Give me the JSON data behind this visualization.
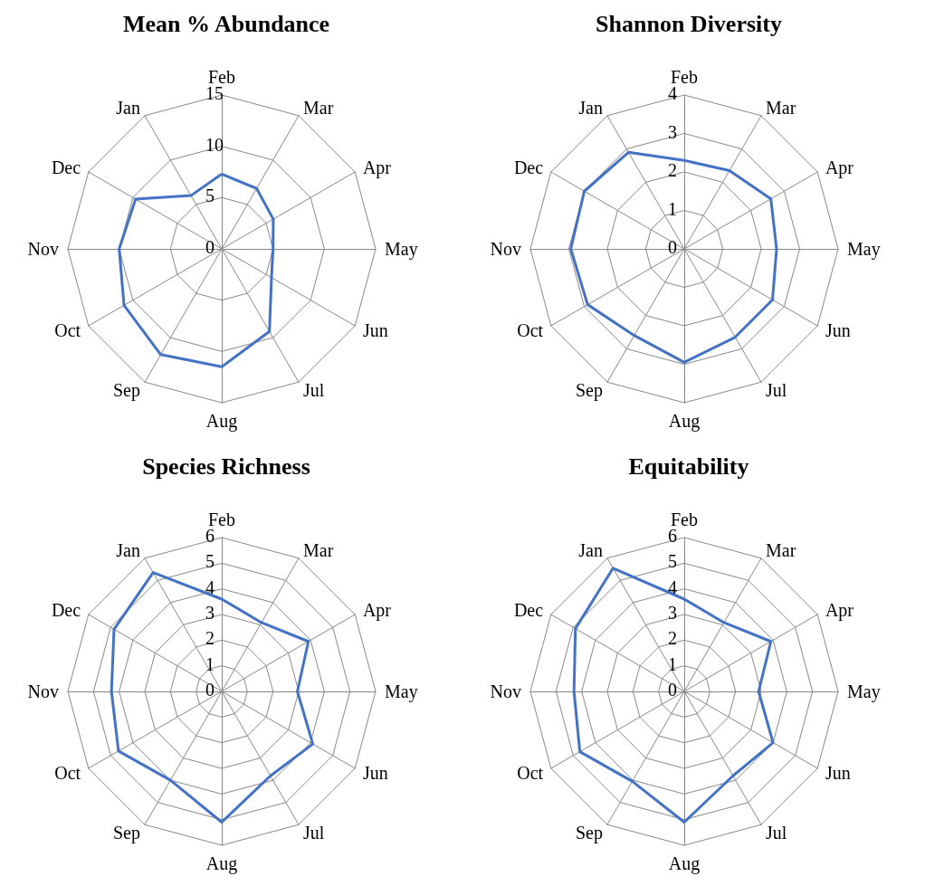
{
  "chart_data": [
    {
      "type": "radar",
      "title": "Mean % Abundance",
      "categories": [
        "Feb",
        "Mar",
        "Apr",
        "May",
        "Jun",
        "Jul",
        "Aug",
        "Sep",
        "Oct",
        "Nov",
        "Dec",
        "Jan"
      ],
      "series": [
        {
          "color": "#4472c4",
          "values": [
            7.3,
            6.8,
            5.8,
            5.0,
            5.6,
            9.3,
            11.5,
            11.9,
            11.0,
            10.0,
            9.7,
            6.0
          ]
        }
      ],
      "ylim": [
        0,
        15
      ],
      "yticks": [
        0,
        5,
        10,
        15
      ],
      "grid": true,
      "marker": "none"
    },
    {
      "type": "radar",
      "title": "Shannon Diversity",
      "categories": [
        "Feb",
        "Mar",
        "Apr",
        "May",
        "Jun",
        "Jul",
        "Aug",
        "Sep",
        "Oct",
        "Nov",
        "Dec",
        "Jan"
      ],
      "series": [
        {
          "color": "#4472c4",
          "values": [
            2.3,
            2.35,
            2.6,
            2.4,
            2.65,
            2.65,
            2.95,
            2.6,
            2.9,
            2.95,
            3.0,
            2.9
          ]
        }
      ],
      "ylim": [
        0,
        4
      ],
      "yticks": [
        0,
        1,
        2,
        3,
        4
      ],
      "grid": true,
      "marker": "none"
    },
    {
      "type": "radar",
      "title": "Species Richness",
      "categories": [
        "Feb",
        "Mar",
        "Apr",
        "May",
        "Jun",
        "Jul",
        "Aug",
        "Sep",
        "Oct",
        "Nov",
        "Dec",
        "Jan"
      ],
      "series": [
        {
          "color": "#4472c4",
          "values": [
            3.6,
            3.1,
            3.9,
            2.95,
            4.1,
            3.8,
            5.1,
            4.0,
            4.65,
            4.3,
            4.85,
            5.35
          ]
        }
      ],
      "ylim": [
        0,
        6
      ],
      "yticks": [
        0,
        1,
        2,
        3,
        4,
        5,
        6
      ],
      "grid": true,
      "marker": "none"
    },
    {
      "type": "radar",
      "title": "Equitability",
      "categories": [
        "Feb",
        "Mar",
        "Apr",
        "May",
        "Jun",
        "Jul",
        "Aug",
        "Sep",
        "Oct",
        "Nov",
        "Dec",
        "Jan"
      ],
      "series": [
        {
          "color": "#4472c4",
          "values": [
            3.6,
            3.1,
            3.9,
            2.9,
            4.0,
            3.8,
            5.1,
            4.05,
            4.7,
            4.3,
            4.9,
            5.55
          ]
        }
      ],
      "ylim": [
        0,
        6
      ],
      "yticks": [
        0,
        1,
        2,
        3,
        4,
        5,
        6
      ],
      "grid": true,
      "marker": "none"
    }
  ]
}
